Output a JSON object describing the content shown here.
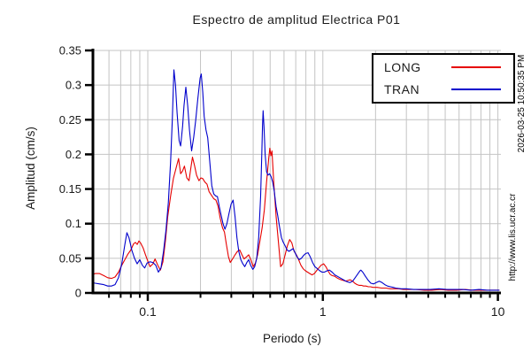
{
  "title": "Espectro de amplitud Electrica P01",
  "right_margin": {
    "timestamp": "2026-03-25 10:50:35 PM",
    "url": "http://www.lis.ucr.ac.cr"
  },
  "chart_data": {
    "type": "line",
    "title": "Espectro de amplitud Electrica P01",
    "xlabel": "Periodo (s)",
    "ylabel": "Amplitud (cm/s)",
    "x_scale": "log",
    "xlim": [
      0.048,
      10.2
    ],
    "ylim": [
      0,
      0.35
    ],
    "x_ticks": [
      0.1,
      1,
      10
    ],
    "x_tick_labels": [
      "0.1",
      "1",
      "10"
    ],
    "x_minor_ticks": [
      0.06,
      0.07,
      0.08,
      0.09,
      0.2,
      0.3,
      0.4,
      0.5,
      0.6,
      0.7,
      0.8,
      0.9,
      2,
      3,
      4,
      5,
      6,
      7,
      8,
      9
    ],
    "y_ticks": [
      0,
      0.05,
      0.1,
      0.15,
      0.2,
      0.25,
      0.3,
      0.35
    ],
    "y_tick_labels": [
      "0",
      "0.05",
      "0.1",
      "0.15",
      "0.2",
      "0.25",
      "0.3",
      "0.35"
    ],
    "grid": true,
    "grid_color": "#c4c4c4",
    "axis_color": "#000000",
    "legend_position": "top-right",
    "series": [
      {
        "name": "LONG",
        "color": "#e60000",
        "points": [
          [
            0.048,
            0.026
          ],
          [
            0.05,
            0.028
          ],
          [
            0.053,
            0.028
          ],
          [
            0.056,
            0.025
          ],
          [
            0.059,
            0.022
          ],
          [
            0.062,
            0.021
          ],
          [
            0.065,
            0.023
          ],
          [
            0.068,
            0.03
          ],
          [
            0.071,
            0.04
          ],
          [
            0.074,
            0.048
          ],
          [
            0.077,
            0.056
          ],
          [
            0.08,
            0.062
          ],
          [
            0.083,
            0.071
          ],
          [
            0.085,
            0.073
          ],
          [
            0.087,
            0.07
          ],
          [
            0.089,
            0.075
          ],
          [
            0.091,
            0.072
          ],
          [
            0.094,
            0.065
          ],
          [
            0.097,
            0.055
          ],
          [
            0.1,
            0.046
          ],
          [
            0.103,
            0.038
          ],
          [
            0.107,
            0.042
          ],
          [
            0.11,
            0.049
          ],
          [
            0.114,
            0.04
          ],
          [
            0.118,
            0.033
          ],
          [
            0.122,
            0.045
          ],
          [
            0.126,
            0.075
          ],
          [
            0.13,
            0.11
          ],
          [
            0.135,
            0.14
          ],
          [
            0.14,
            0.165
          ],
          [
            0.145,
            0.18
          ],
          [
            0.15,
            0.194
          ],
          [
            0.154,
            0.172
          ],
          [
            0.158,
            0.176
          ],
          [
            0.162,
            0.183
          ],
          [
            0.167,
            0.166
          ],
          [
            0.172,
            0.162
          ],
          [
            0.176,
            0.18
          ],
          [
            0.18,
            0.196
          ],
          [
            0.185,
            0.184
          ],
          [
            0.19,
            0.17
          ],
          [
            0.196,
            0.162
          ],
          [
            0.201,
            0.166
          ],
          [
            0.206,
            0.165
          ],
          [
            0.212,
            0.16
          ],
          [
            0.218,
            0.157
          ],
          [
            0.224,
            0.146
          ],
          [
            0.231,
            0.141
          ],
          [
            0.238,
            0.136
          ],
          [
            0.245,
            0.134
          ],
          [
            0.252,
            0.125
          ],
          [
            0.259,
            0.108
          ],
          [
            0.267,
            0.094
          ],
          [
            0.274,
            0.088
          ],
          [
            0.281,
            0.07
          ],
          [
            0.289,
            0.052
          ],
          [
            0.296,
            0.044
          ],
          [
            0.305,
            0.049
          ],
          [
            0.315,
            0.055
          ],
          [
            0.325,
            0.06
          ],
          [
            0.335,
            0.062
          ],
          [
            0.345,
            0.055
          ],
          [
            0.355,
            0.049
          ],
          [
            0.366,
            0.052
          ],
          [
            0.377,
            0.055
          ],
          [
            0.389,
            0.047
          ],
          [
            0.4,
            0.038
          ],
          [
            0.412,
            0.043
          ],
          [
            0.424,
            0.055
          ],
          [
            0.437,
            0.075
          ],
          [
            0.45,
            0.094
          ],
          [
            0.463,
            0.12
          ],
          [
            0.477,
            0.16
          ],
          [
            0.491,
            0.195
          ],
          [
            0.498,
            0.209
          ],
          [
            0.505,
            0.198
          ],
          [
            0.512,
            0.205
          ],
          [
            0.525,
            0.158
          ],
          [
            0.541,
            0.11
          ],
          [
            0.557,
            0.075
          ],
          [
            0.574,
            0.038
          ],
          [
            0.591,
            0.042
          ],
          [
            0.609,
            0.055
          ],
          [
            0.627,
            0.068
          ],
          [
            0.646,
            0.077
          ],
          [
            0.665,
            0.072
          ],
          [
            0.685,
            0.06
          ],
          [
            0.706,
            0.055
          ],
          [
            0.727,
            0.048
          ],
          [
            0.749,
            0.04
          ],
          [
            0.771,
            0.035
          ],
          [
            0.794,
            0.032
          ],
          [
            0.818,
            0.03
          ],
          [
            0.843,
            0.028
          ],
          [
            0.868,
            0.026
          ],
          [
            0.894,
            0.028
          ],
          [
            0.921,
            0.032
          ],
          [
            0.948,
            0.036
          ],
          [
            0.977,
            0.04
          ],
          [
            1.01,
            0.042
          ],
          [
            1.04,
            0.038
          ],
          [
            1.07,
            0.032
          ],
          [
            1.1,
            0.027
          ],
          [
            1.13,
            0.025
          ],
          [
            1.17,
            0.024
          ],
          [
            1.2,
            0.022
          ],
          [
            1.24,
            0.02
          ],
          [
            1.27,
            0.019
          ],
          [
            1.31,
            0.018
          ],
          [
            1.35,
            0.017
          ],
          [
            1.39,
            0.018
          ],
          [
            1.43,
            0.019
          ],
          [
            1.48,
            0.017
          ],
          [
            1.52,
            0.014
          ],
          [
            1.57,
            0.012
          ],
          [
            1.61,
            0.011
          ],
          [
            1.66,
            0.011
          ],
          [
            1.71,
            0.01
          ],
          [
            1.76,
            0.01
          ],
          [
            1.82,
            0.009
          ],
          [
            1.87,
            0.009
          ],
          [
            1.93,
            0.008
          ],
          [
            2.04,
            0.008
          ],
          [
            2.16,
            0.007
          ],
          [
            2.29,
            0.007
          ],
          [
            2.43,
            0.006
          ],
          [
            2.57,
            0.006
          ],
          [
            2.72,
            0.006
          ],
          [
            2.88,
            0.005
          ],
          [
            3.05,
            0.005
          ],
          [
            3.4,
            0.005
          ],
          [
            3.8,
            0.004
          ],
          [
            4.2,
            0.004
          ],
          [
            4.7,
            0.005
          ],
          [
            5.2,
            0.004
          ],
          [
            5.8,
            0.004
          ],
          [
            6.5,
            0.005
          ],
          [
            7.2,
            0.004
          ],
          [
            8.0,
            0.004
          ],
          [
            8.9,
            0.004
          ],
          [
            9.7,
            0.004
          ],
          [
            10.2,
            0.004
          ]
        ]
      },
      {
        "name": "TRAN",
        "color": "#0000cc",
        "points": [
          [
            0.048,
            0.015
          ],
          [
            0.05,
            0.014
          ],
          [
            0.053,
            0.013
          ],
          [
            0.056,
            0.012
          ],
          [
            0.059,
            0.01
          ],
          [
            0.062,
            0.01
          ],
          [
            0.065,
            0.012
          ],
          [
            0.068,
            0.022
          ],
          [
            0.071,
            0.042
          ],
          [
            0.074,
            0.07
          ],
          [
            0.076,
            0.087
          ],
          [
            0.078,
            0.08
          ],
          [
            0.081,
            0.062
          ],
          [
            0.084,
            0.05
          ],
          [
            0.087,
            0.042
          ],
          [
            0.09,
            0.048
          ],
          [
            0.093,
            0.04
          ],
          [
            0.096,
            0.036
          ],
          [
            0.099,
            0.043
          ],
          [
            0.103,
            0.045
          ],
          [
            0.107,
            0.044
          ],
          [
            0.111,
            0.04
          ],
          [
            0.115,
            0.03
          ],
          [
            0.119,
            0.036
          ],
          [
            0.123,
            0.06
          ],
          [
            0.127,
            0.09
          ],
          [
            0.131,
            0.13
          ],
          [
            0.135,
            0.19
          ],
          [
            0.138,
            0.25
          ],
          [
            0.141,
            0.322
          ],
          [
            0.144,
            0.3
          ],
          [
            0.147,
            0.26
          ],
          [
            0.151,
            0.22
          ],
          [
            0.154,
            0.212
          ],
          [
            0.158,
            0.24
          ],
          [
            0.161,
            0.27
          ],
          [
            0.165,
            0.297
          ],
          [
            0.169,
            0.27
          ],
          [
            0.173,
            0.235
          ],
          [
            0.178,
            0.205
          ],
          [
            0.183,
            0.225
          ],
          [
            0.188,
            0.25
          ],
          [
            0.193,
            0.28
          ],
          [
            0.199,
            0.31
          ],
          [
            0.202,
            0.316
          ],
          [
            0.206,
            0.29
          ],
          [
            0.21,
            0.255
          ],
          [
            0.215,
            0.235
          ],
          [
            0.22,
            0.224
          ],
          [
            0.226,
            0.19
          ],
          [
            0.232,
            0.155
          ],
          [
            0.238,
            0.143
          ],
          [
            0.244,
            0.14
          ],
          [
            0.25,
            0.139
          ],
          [
            0.256,
            0.125
          ],
          [
            0.262,
            0.113
          ],
          [
            0.269,
            0.1
          ],
          [
            0.276,
            0.092
          ],
          [
            0.283,
            0.1
          ],
          [
            0.291,
            0.115
          ],
          [
            0.299,
            0.128
          ],
          [
            0.307,
            0.134
          ],
          [
            0.315,
            0.11
          ],
          [
            0.323,
            0.08
          ],
          [
            0.331,
            0.06
          ],
          [
            0.34,
            0.048
          ],
          [
            0.349,
            0.042
          ],
          [
            0.358,
            0.038
          ],
          [
            0.368,
            0.044
          ],
          [
            0.377,
            0.048
          ],
          [
            0.387,
            0.04
          ],
          [
            0.398,
            0.034
          ],
          [
            0.408,
            0.038
          ],
          [
            0.419,
            0.05
          ],
          [
            0.43,
            0.08
          ],
          [
            0.441,
            0.14
          ],
          [
            0.448,
            0.2
          ],
          [
            0.452,
            0.24
          ],
          [
            0.456,
            0.263
          ],
          [
            0.461,
            0.24
          ],
          [
            0.468,
            0.2
          ],
          [
            0.477,
            0.175
          ],
          [
            0.486,
            0.17
          ],
          [
            0.496,
            0.172
          ],
          [
            0.506,
            0.168
          ],
          [
            0.517,
            0.16
          ],
          [
            0.528,
            0.147
          ],
          [
            0.54,
            0.125
          ],
          [
            0.553,
            0.111
          ],
          [
            0.566,
            0.095
          ],
          [
            0.58,
            0.08
          ],
          [
            0.594,
            0.073
          ],
          [
            0.609,
            0.068
          ],
          [
            0.625,
            0.062
          ],
          [
            0.641,
            0.06
          ],
          [
            0.658,
            0.062
          ],
          [
            0.676,
            0.064
          ],
          [
            0.694,
            0.058
          ],
          [
            0.713,
            0.052
          ],
          [
            0.733,
            0.048
          ],
          [
            0.754,
            0.05
          ],
          [
            0.776,
            0.054
          ],
          [
            0.799,
            0.057
          ],
          [
            0.823,
            0.058
          ],
          [
            0.848,
            0.052
          ],
          [
            0.874,
            0.044
          ],
          [
            0.901,
            0.038
          ],
          [
            0.93,
            0.035
          ],
          [
            0.959,
            0.032
          ],
          [
            0.99,
            0.03
          ],
          [
            1.02,
            0.03
          ],
          [
            1.06,
            0.032
          ],
          [
            1.09,
            0.033
          ],
          [
            1.13,
            0.03
          ],
          [
            1.17,
            0.026
          ],
          [
            1.21,
            0.024
          ],
          [
            1.25,
            0.022
          ],
          [
            1.29,
            0.02
          ],
          [
            1.33,
            0.018
          ],
          [
            1.38,
            0.016
          ],
          [
            1.43,
            0.015
          ],
          [
            1.48,
            0.017
          ],
          [
            1.53,
            0.022
          ],
          [
            1.59,
            0.028
          ],
          [
            1.63,
            0.032
          ],
          [
            1.65,
            0.033
          ],
          [
            1.69,
            0.03
          ],
          [
            1.75,
            0.024
          ],
          [
            1.82,
            0.018
          ],
          [
            1.88,
            0.014
          ],
          [
            1.95,
            0.013
          ],
          [
            2.02,
            0.015
          ],
          [
            2.1,
            0.017
          ],
          [
            2.18,
            0.015
          ],
          [
            2.26,
            0.012
          ],
          [
            2.34,
            0.01
          ],
          [
            2.43,
            0.009
          ],
          [
            2.52,
            0.008
          ],
          [
            2.61,
            0.007
          ],
          [
            2.8,
            0.006
          ],
          [
            3.0,
            0.006
          ],
          [
            3.3,
            0.005
          ],
          [
            3.7,
            0.005
          ],
          [
            4.1,
            0.005
          ],
          [
            4.6,
            0.006
          ],
          [
            5.1,
            0.005
          ],
          [
            5.7,
            0.005
          ],
          [
            6.3,
            0.005
          ],
          [
            7.0,
            0.004
          ],
          [
            7.8,
            0.005
          ],
          [
            8.7,
            0.004
          ],
          [
            9.7,
            0.004
          ],
          [
            10.2,
            0.004
          ]
        ]
      }
    ]
  }
}
